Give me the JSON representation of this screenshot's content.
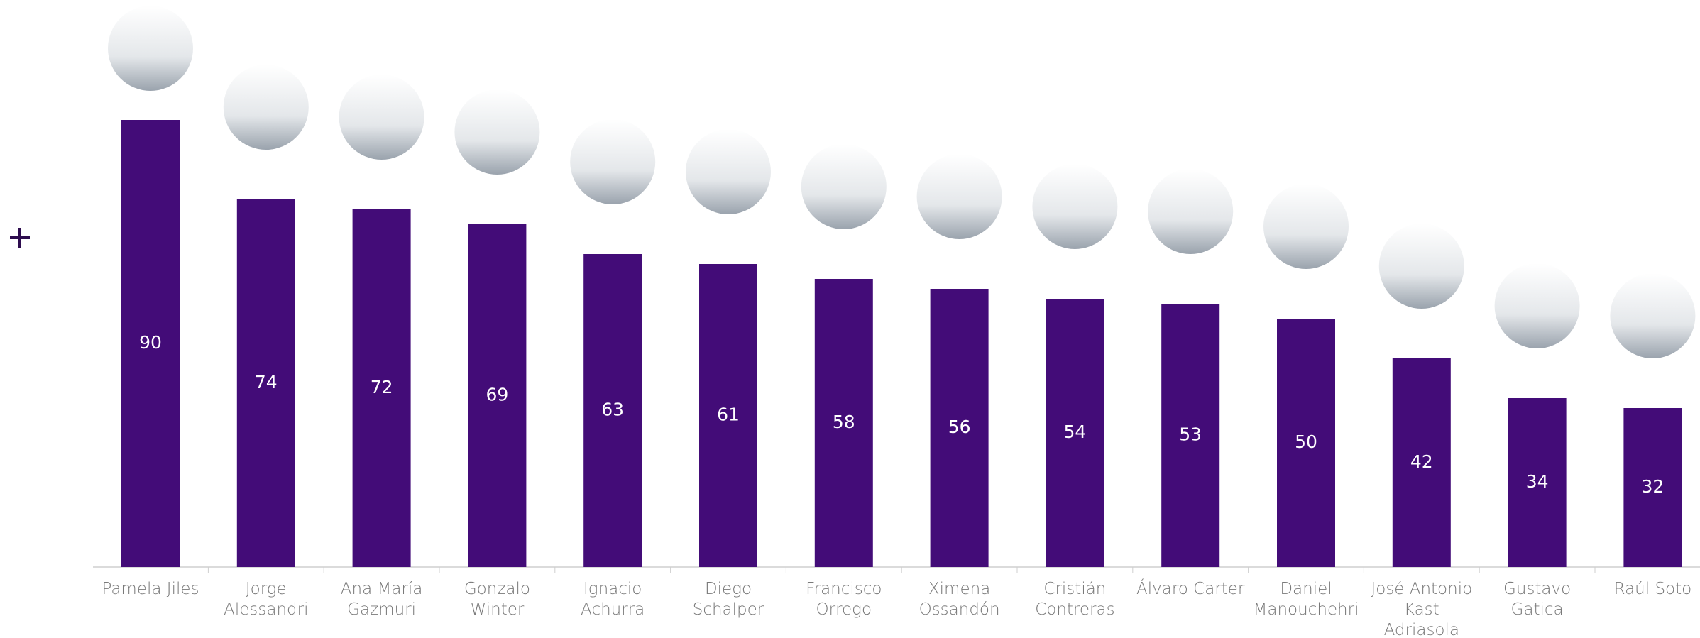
{
  "chart_data": {
    "type": "bar",
    "categories": [
      "Pamela Jiles",
      "Jorge\nAlessandri",
      "Ana María\nGazmuri",
      "Gonzalo\nWinter",
      "Ignacio\nAchurra",
      "Diego\nSchalper",
      "Francisco\nOrrego",
      "Ximena\nOssandón",
      "Cristián\nContreras",
      "Álvaro Carter",
      "Daniel\nManouchehri",
      "José Antonio\nKast\nAdriasola",
      "Gustavo\nGatica",
      "Raúl Soto"
    ],
    "values": [
      90,
      74,
      72,
      69,
      63,
      61,
      58,
      56,
      54,
      53,
      50,
      42,
      34,
      32
    ],
    "color": "#430c78"
  }
}
